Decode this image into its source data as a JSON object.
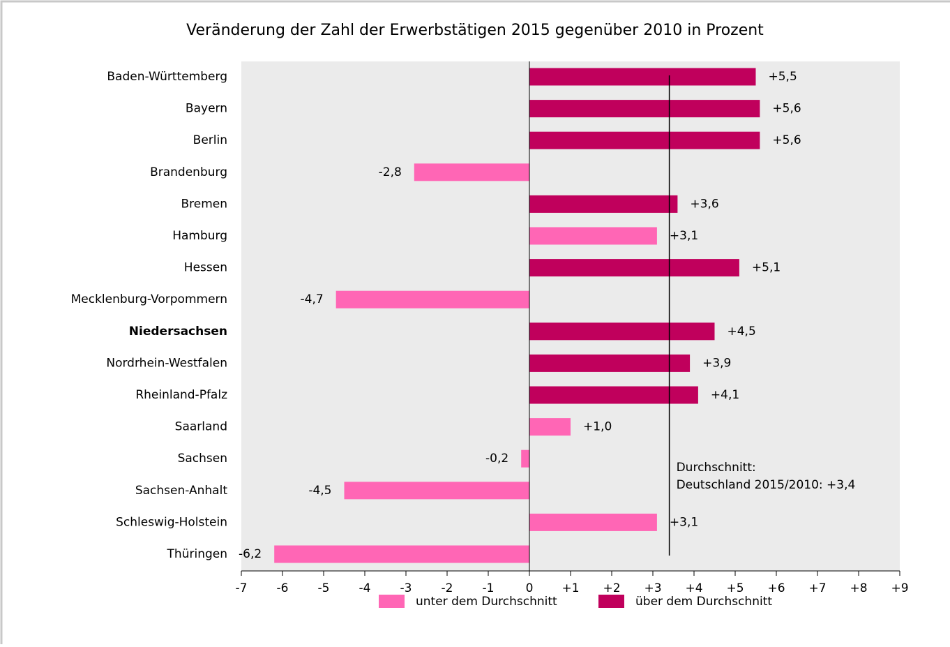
{
  "chart_data": {
    "type": "bar",
    "orientation": "horizontal",
    "title": "Veränderung der Zahl der Erwerbstätigen 2015 gegenüber 2010 in Prozent",
    "categories": [
      "Baden-Württemberg",
      "Bayern",
      "Berlin",
      "Brandenburg",
      "Bremen",
      "Hamburg",
      "Hessen",
      "Mecklenburg-Vorpommern",
      "Niedersachsen",
      "Nordrhein-Westfalen",
      "Rheinland-Pfalz",
      "Saarland",
      "Sachsen",
      "Sachsen-Anhalt",
      "Schleswig-Holstein",
      "Thüringen"
    ],
    "bold_category": 8,
    "series": [
      {
        "name": "unter dem Durchschnitt",
        "color": "#ff66b5",
        "values": [
          null,
          null,
          null,
          -2.8,
          null,
          3.1,
          null,
          -4.7,
          null,
          null,
          null,
          1.0,
          -0.2,
          -4.5,
          3.1,
          -6.2
        ],
        "value_labels": [
          null,
          null,
          null,
          "-2,8",
          null,
          "+3,1",
          null,
          "-4,7",
          null,
          null,
          null,
          "+1,0",
          "-0,2",
          "-4,5",
          "+3,1",
          "-6,2"
        ]
      },
      {
        "name": "über dem Durchschnitt",
        "color": "#c0005c",
        "values": [
          5.5,
          5.6,
          5.6,
          null,
          3.6,
          null,
          5.1,
          null,
          4.5,
          3.9,
          4.1,
          null,
          null,
          null,
          null,
          null
        ],
        "value_labels": [
          "+5,5",
          "+5,6",
          "+5,6",
          null,
          "+3,6",
          null,
          "+5,1",
          null,
          "+4,5",
          "+3,9",
          "+4,1",
          null,
          null,
          null,
          null,
          null
        ]
      }
    ],
    "xlim": [
      -7,
      9
    ],
    "xticks": [
      -7,
      -6,
      -5,
      -4,
      -3,
      -2,
      -1,
      0,
      {
        "value": 1,
        "label": "+1"
      },
      {
        "value": 2,
        "label": "+2"
      },
      {
        "value": 3,
        "label": "+3"
      },
      {
        "value": 4,
        "label": "+4"
      },
      {
        "value": 5,
        "label": "+5"
      },
      {
        "value": 6,
        "label": "+6"
      },
      {
        "value": 7,
        "label": "+7"
      },
      {
        "value": 8,
        "label": "+8"
      },
      {
        "value": 9,
        "label": "+9"
      }
    ],
    "average": {
      "value": 3.4,
      "label": [
        "Durchschnitt:",
        "Deutschland 2015/2010: +3,4"
      ]
    },
    "legend": "bottom"
  }
}
